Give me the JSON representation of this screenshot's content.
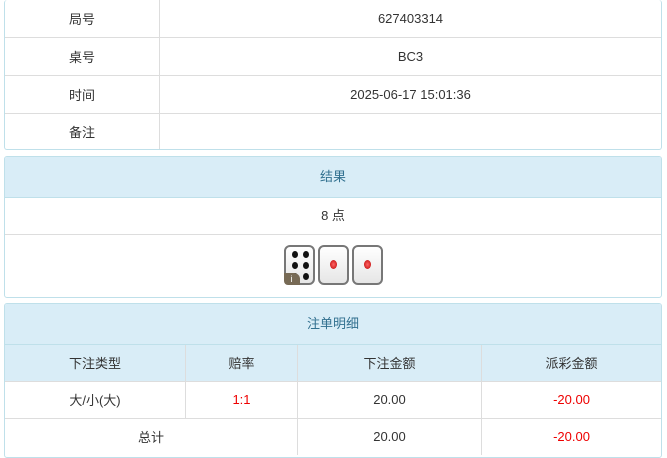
{
  "info": {
    "rows": [
      {
        "label": "局号",
        "value": "627403314"
      },
      {
        "label": "桌号",
        "value": "BC3"
      },
      {
        "label": "时间",
        "value": "2025-06-17 15:01:36"
      },
      {
        "label": "备注",
        "value": ""
      }
    ]
  },
  "result": {
    "title": "结果",
    "points": "8 点",
    "dice": [
      6,
      1,
      1
    ],
    "info_badge": "i"
  },
  "bets": {
    "title": "注单明细",
    "headers": [
      "下注类型",
      "赔率",
      "下注金额",
      "派彩金额"
    ],
    "rows": [
      {
        "type": "大/小(大)",
        "odds": "1:1",
        "amount": "20.00",
        "payout": "-20.00"
      }
    ],
    "total": {
      "label": "总计",
      "amount": "20.00",
      "payout": "-20.00"
    }
  },
  "colors": {
    "header_bg": "#d9edf7",
    "header_text": "#31708f",
    "negative": "#ee0000"
  }
}
